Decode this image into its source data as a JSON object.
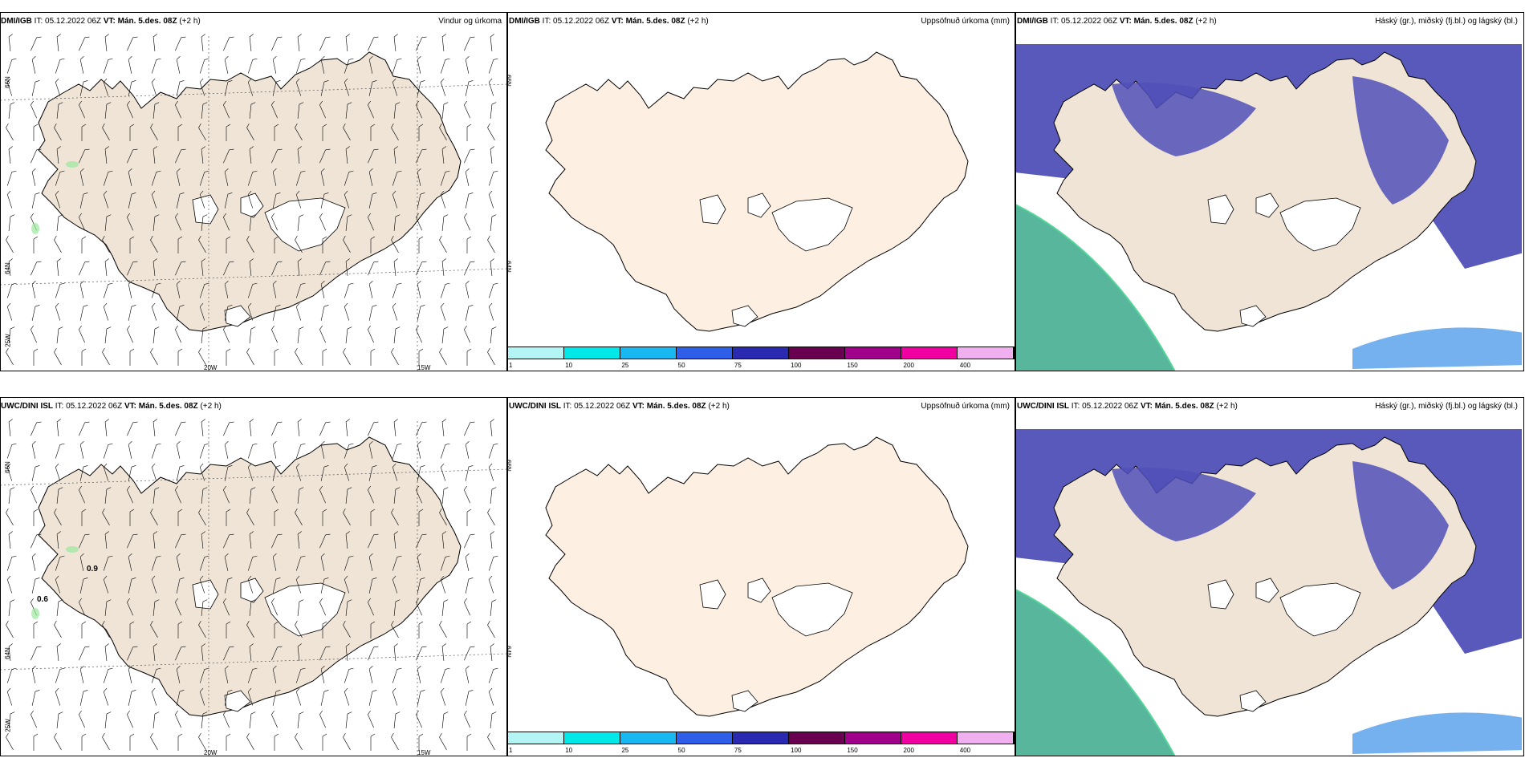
{
  "panels": [
    {
      "id": "p1",
      "source": "DMI/IGB",
      "it": "IT: 05.12.2022 06Z",
      "vt": "VT: Mán. 5.des. 08Z",
      "off": "(+2 h)",
      "field": "Vindur og úrkoma"
    },
    {
      "id": "p2",
      "source": "DMI/IGB",
      "it": "IT: 05.12.2022 06Z",
      "vt": "VT: Mán. 5.des. 08Z",
      "off": "(+2 h)",
      "field": "Uppsöfnuð úrkoma (mm)"
    },
    {
      "id": "p3",
      "source": "DMI/IGB",
      "it": "IT: 05.12.2022 06Z",
      "vt": "VT: Mán. 5.des. 08Z",
      "off": "(+2 h)",
      "field": "Háský (gr.), miðský (fj.bl.) og lágský (bl.)"
    },
    {
      "id": "p4",
      "source": "UWC/DINI ISL",
      "it": "IT: 05.12.2022 06Z",
      "vt": "VT: Mán. 5.des. 08Z",
      "off": "(+2 h)",
      "field": ""
    },
    {
      "id": "p5",
      "source": "UWC/DINI ISL",
      "it": "IT: 05.12.2022 06Z",
      "vt": "VT: Mán. 5.des. 08Z",
      "off": "(+2 h)",
      "field": "Uppsöfnuð úrkoma (mm)"
    },
    {
      "id": "p6",
      "source": "UWC/DINI ISL",
      "it": "IT: 05.12.2022 06Z",
      "vt": "VT: Mán. 5.des. 08Z",
      "off": "(+2 h)",
      "field": "Háský (gr.), miðský (fj.bl.) og lágský (bl.)"
    }
  ],
  "colorbar": {
    "ticks": [
      "1",
      "10",
      "25",
      "50",
      "75",
      "100",
      "150",
      "200",
      "400"
    ],
    "colors": [
      "#b3f5f5",
      "#00e8e8",
      "#1ab8f0",
      "#2f5fe8",
      "#2a2ab0",
      "#6a0050",
      "#a0008a",
      "#f000a0",
      "#f0b0f0"
    ]
  },
  "geo": {
    "lon_20": "20W",
    "lon_15": "15W",
    "lat_66": "66N",
    "lat_64": "64N",
    "lat_25w": "25W"
  },
  "labels": {
    "p4_val1": "0.9",
    "p4_val2": "0.6"
  },
  "colors": {
    "land": "#efe4d6",
    "land_plain": "#fdf0e2",
    "cloud_low": "#5050b8",
    "cloud_mid": "#3a8ee8",
    "cloud_high": "#3aaa8a"
  }
}
